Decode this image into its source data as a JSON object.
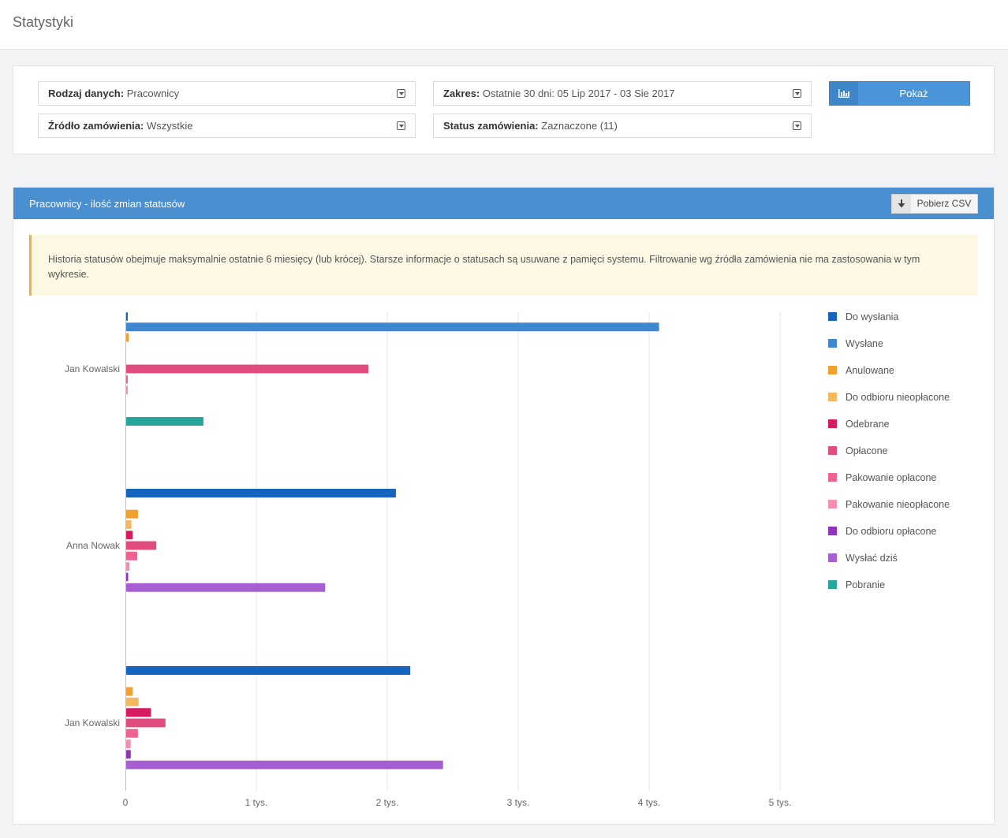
{
  "page": {
    "title": "Statystyki"
  },
  "filters": {
    "data_type": {
      "label": "Rodzaj danych:",
      "value": "Pracownicy"
    },
    "range": {
      "label": "Zakres:",
      "value": "Ostatnie 30 dni: 05 Lip 2017 - 03 Sie 2017"
    },
    "order_source": {
      "label": "Źródło zamówienia:",
      "value": "Wszystkie"
    },
    "order_status": {
      "label": "Status zamówienia:",
      "value": "Zaznaczone (11)"
    },
    "show_button": "Pokaż"
  },
  "panel": {
    "title": "Pracownicy - ilość zmian statusów",
    "csv_button": "Pobierz CSV",
    "alert": "Historia statusów obejmuje maksymalnie ostatnie 6 miesięcy (lub krócej). Starsze informacje o statusach są usuwane z pamięci systemu. Filtrowanie wg źródła zamówienia nie ma zastosowania w tym wykresie."
  },
  "icons": {
    "show_button_icon": "bar-chart-icon",
    "csv_button_icon": "download-arrow-icon",
    "select_arrow": "chevron-down-icon"
  },
  "chart_data": {
    "type": "bar",
    "orientation": "horizontal",
    "categories": [
      "Jan Kowalski",
      "Anna Nowak",
      "Jan Kowalski"
    ],
    "x_ticks": [
      "0",
      "1 tys.",
      "2 tys.",
      "3 tys.",
      "4 tys.",
      "5 tys."
    ],
    "xlim": [
      0,
      5000
    ],
    "grid": true,
    "legend_position": "right",
    "series": [
      {
        "name": "Do wysłania",
        "color": "#1565c0",
        "values": [
          10,
          2060,
          2170
        ]
      },
      {
        "name": "Wysłane",
        "color": "#3f87d0",
        "values": [
          4070,
          0,
          0
        ]
      },
      {
        "name": "Anulowane",
        "color": "#f0a030",
        "values": [
          20,
          90,
          50
        ]
      },
      {
        "name": "Do odbioru nieopłacone",
        "color": "#f4b860",
        "values": [
          0,
          40,
          95
        ]
      },
      {
        "name": "Odebrane",
        "color": "#d81b60",
        "values": [
          0,
          50,
          190
        ]
      },
      {
        "name": "Opłacone",
        "color": "#e04c7e",
        "values": [
          1850,
          230,
          300
        ]
      },
      {
        "name": "Pakowanie opłacone",
        "color": "#f06292",
        "values": [
          5,
          85,
          90
        ]
      },
      {
        "name": "Pakowanie nieopłacone",
        "color": "#f48fb1",
        "values": [
          5,
          25,
          35
        ]
      },
      {
        "name": "Do odbioru opłacone",
        "color": "#8e35b9",
        "values": [
          0,
          15,
          35
        ]
      },
      {
        "name": "Wysłać dziś",
        "color": "#a55fd0",
        "values": [
          0,
          1520,
          2420
        ]
      },
      {
        "name": "Pobranie",
        "color": "#26a69a",
        "values": [
          590,
          0,
          0
        ]
      }
    ]
  }
}
